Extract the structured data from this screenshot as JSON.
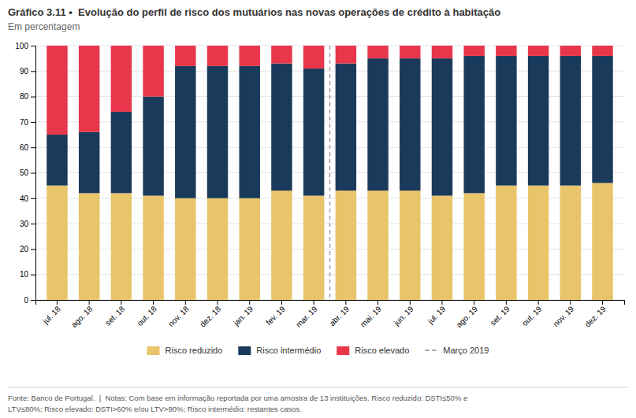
{
  "chart_data": {
    "type": "bar",
    "stacked": true,
    "title": "Gráfico 3.11 •  Evolução do perfil de risco dos mutuários nas novas operações de crédito à habitação",
    "subtitle": "Em percentagem",
    "categories": [
      "jul. 18",
      "ago. 18",
      "set. 18",
      "out. 18",
      "nov. 18",
      "dez. 18",
      "jan. 19",
      "fev. 19",
      "mar. 19",
      "abr. 19",
      "mai. 19",
      "jun. 19",
      "jul. 19",
      "ago. 19",
      "set. 19",
      "out. 19",
      "nov. 19",
      "dez. 19"
    ],
    "series": [
      {
        "name": "Risco reduzido",
        "color": "#E8C46A",
        "values": [
          45,
          42,
          42,
          41,
          40,
          40,
          40,
          43,
          41,
          43,
          43,
          43,
          41,
          42,
          45,
          45,
          45,
          46
        ]
      },
      {
        "name": "Risco intermédio",
        "color": "#1A3A5C",
        "values": [
          20,
          24,
          32,
          39,
          52,
          52,
          52,
          50,
          50,
          50,
          52,
          52,
          54,
          54,
          51,
          51,
          51,
          50
        ]
      },
      {
        "name": "Risco elevado",
        "color": "#E8374A",
        "values": [
          35,
          34,
          26,
          20,
          8,
          8,
          8,
          7,
          9,
          7,
          5,
          5,
          5,
          4,
          4,
          4,
          4,
          4
        ]
      }
    ],
    "ylim": [
      0,
      100
    ],
    "yticks": [
      0,
      10,
      20,
      30,
      40,
      50,
      60,
      70,
      80,
      90,
      100
    ],
    "grid": true,
    "legend": "bottom",
    "annotations": [
      {
        "type": "vline",
        "text": "Março 2019",
        "between": [
          "mar. 19",
          "abr. 19"
        ],
        "color": "#A0A0A0",
        "line_style": "dashed"
      },
      {
        "type": "note",
        "text": "Fonte: Banco de Portugal.  |  Notas: Com base em informação reportada por uma amostra de 13 instituições. Risco reduzido: DSTI≤50% e"
      },
      {
        "type": "note",
        "text": "LTV≤80%; Risco elevado: DSTI>60% e/ou LTV>90%; Risco intermédio: restantes casos."
      }
    ]
  }
}
